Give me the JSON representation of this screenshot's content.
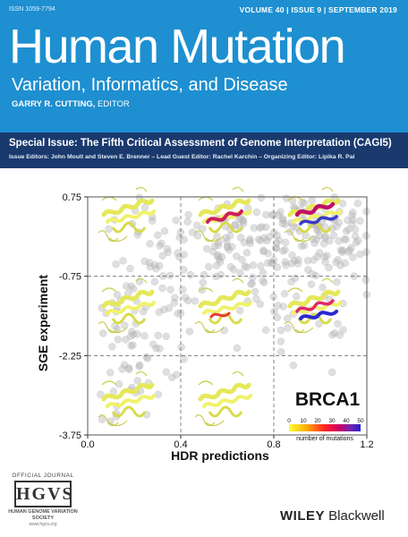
{
  "masthead": {
    "issn": "ISSN 1059-7794",
    "volume_info": "VOLUME 40 | ISSUE 9 | SEPTEMBER 2019",
    "title": "Human Mutation",
    "subtitle": "Variation, Informatics, and Disease",
    "editor_name": "GARRY R. CUTTING,",
    "editor_role": " EDITOR",
    "background_color": "#1e8fd0"
  },
  "special_issue": {
    "title": "Special Issue: The Fifth Critical Assessment of Genome Interpretation (CAGI5)",
    "editors": "Issue Editors: John Moult and Steven E. Brenner – Lead Guest Editor: Rachel Karchin – Organizing Editor: Lipika R. Pal",
    "background_color": "#1a3a6e"
  },
  "chart_data": {
    "type": "scatter",
    "xlabel": "HDR predictions",
    "ylabel": "SGE experiment",
    "xlim": [
      0.0,
      1.2
    ],
    "ylim": [
      -3.75,
      0.75
    ],
    "x_ticks": [
      "0.0",
      "0.4",
      "0.8",
      "1.2"
    ],
    "x_tick_values": [
      0.0,
      0.4,
      0.8,
      1.2
    ],
    "y_ticks": [
      "0.75",
      "-0.75",
      "-2.25",
      "-3.75"
    ],
    "y_tick_values": [
      0.75,
      -0.75,
      -2.25,
      -3.75
    ],
    "grid": "dashed",
    "annotation": "BRCA1",
    "colorbar": {
      "label": "number of mutations",
      "ticks": [
        "0",
        "10",
        "20",
        "30",
        "40",
        "50"
      ],
      "colors": [
        "#ffff33",
        "#ffaa00",
        "#ff2222",
        "#cc0066",
        "#7722aa",
        "#2222cc"
      ]
    },
    "point_color": "#b9b9b9",
    "clusters": [
      {
        "x": 0.95,
        "y": 0.05,
        "n": 150,
        "sx": 0.17,
        "sy": 0.45
      },
      {
        "x": 0.6,
        "y": -0.1,
        "n": 90,
        "sx": 0.22,
        "sy": 0.5
      },
      {
        "x": 0.3,
        "y": -1.0,
        "n": 70,
        "sx": 0.12,
        "sy": 0.9
      },
      {
        "x": 0.15,
        "y": -2.5,
        "n": 40,
        "sx": 0.06,
        "sy": 0.8
      },
      {
        "x": 0.85,
        "y": -1.4,
        "n": 50,
        "sx": 0.22,
        "sy": 0.7
      }
    ]
  },
  "publisher": {
    "journal_tag": "OFFICIAL JOURNAL",
    "society_logo": "HGVS",
    "society_name": "HUMAN GENOME VARIATION SOCIETY",
    "society_url": "www.hgvs.org",
    "name_bold": "WILEY",
    "name_rest": " Blackwell"
  }
}
